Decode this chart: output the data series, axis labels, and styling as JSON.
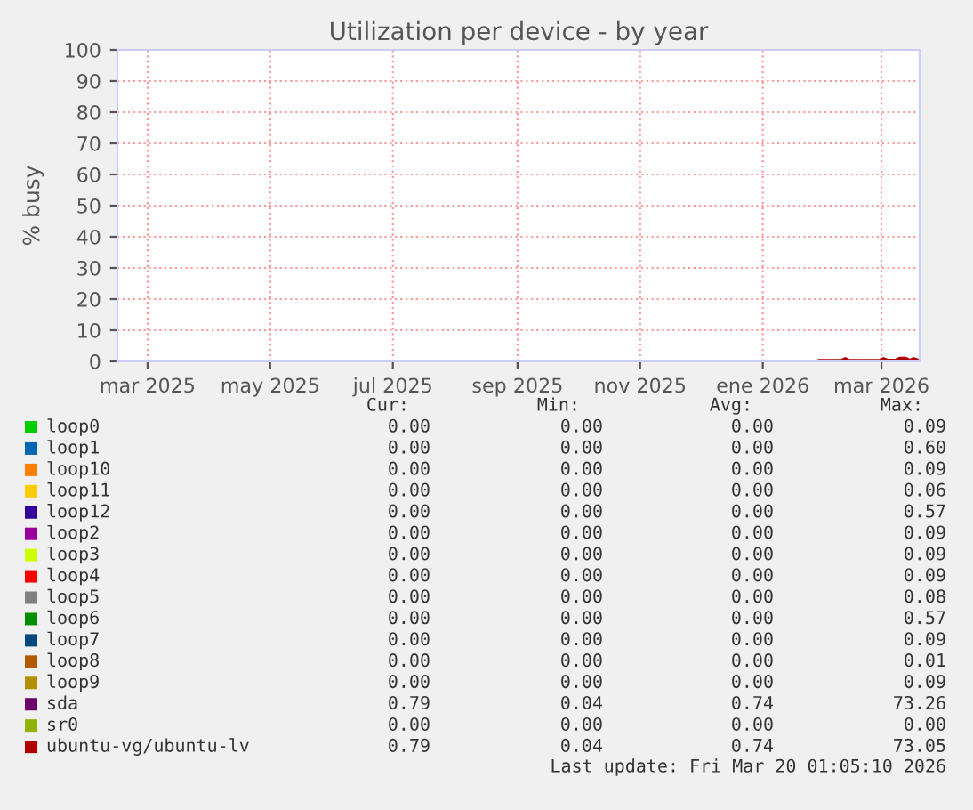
{
  "chart_data": {
    "type": "line",
    "title": "Utilization per device - by year",
    "ylabel": "% busy",
    "x": [
      "2026-01-29",
      "2026-02-09",
      "2026-02-11",
      "2026-02-13",
      "2026-02-28",
      "2026-03-02",
      "2026-03-04",
      "2026-03-08",
      "2026-03-10",
      "2026-03-13",
      "2026-03-15",
      "2026-03-17",
      "2026-03-19"
    ],
    "xlim": [
      "2025-02-14",
      "2026-03-20"
    ],
    "xticks": [
      {
        "value": "2025-03-01",
        "label": "mar 2025"
      },
      {
        "value": "2025-05-01",
        "label": "may 2025"
      },
      {
        "value": "2025-07-01",
        "label": "jul 2025"
      },
      {
        "value": "2025-09-01",
        "label": "sep 2025"
      },
      {
        "value": "2025-11-01",
        "label": "nov 2025"
      },
      {
        "value": "2026-01-01",
        "label": "ene 2026"
      },
      {
        "value": "2026-03-01",
        "label": "mar 2026"
      }
    ],
    "ylim": [
      0,
      100
    ],
    "yticks": [
      0,
      10,
      20,
      30,
      40,
      50,
      60,
      70,
      80,
      90,
      100
    ],
    "grid": true,
    "legend": "bottom",
    "series": [
      {
        "name": "loop0",
        "color": "#00cc00",
        "values": [
          null,
          null,
          null,
          null,
          null,
          null,
          null,
          null,
          null,
          null,
          null,
          null,
          null
        ]
      },
      {
        "name": "loop1",
        "color": "#0066b3",
        "values": [
          null,
          null,
          null,
          null,
          null,
          null,
          null,
          null,
          null,
          null,
          null,
          null,
          null
        ]
      },
      {
        "name": "loop10",
        "color": "#ff8000",
        "values": [
          null,
          null,
          null,
          null,
          null,
          null,
          null,
          null,
          null,
          null,
          null,
          null,
          null
        ]
      },
      {
        "name": "loop11",
        "color": "#ffcc00",
        "values": [
          null,
          null,
          null,
          null,
          null,
          null,
          null,
          null,
          null,
          null,
          null,
          null,
          null
        ]
      },
      {
        "name": "loop12",
        "color": "#330099",
        "values": [
          null,
          null,
          null,
          null,
          null,
          null,
          null,
          null,
          null,
          null,
          null,
          null,
          null
        ]
      },
      {
        "name": "loop2",
        "color": "#990099",
        "values": [
          null,
          null,
          null,
          null,
          null,
          null,
          null,
          null,
          null,
          null,
          null,
          null,
          null
        ]
      },
      {
        "name": "loop3",
        "color": "#ccff00",
        "values": [
          null,
          null,
          null,
          null,
          null,
          null,
          null,
          null,
          null,
          null,
          null,
          null,
          null
        ]
      },
      {
        "name": "loop4",
        "color": "#ff0000",
        "values": [
          null,
          null,
          null,
          null,
          null,
          null,
          null,
          null,
          null,
          null,
          null,
          null,
          null
        ]
      },
      {
        "name": "loop5",
        "color": "#808080",
        "values": [
          null,
          null,
          null,
          null,
          null,
          null,
          null,
          null,
          null,
          null,
          null,
          null,
          null
        ]
      },
      {
        "name": "loop6",
        "color": "#008f00",
        "values": [
          null,
          null,
          null,
          null,
          null,
          null,
          null,
          null,
          null,
          null,
          null,
          null,
          null
        ]
      },
      {
        "name": "loop7",
        "color": "#00487d",
        "values": [
          null,
          null,
          null,
          null,
          null,
          null,
          null,
          null,
          null,
          null,
          null,
          null,
          null
        ]
      },
      {
        "name": "loop8",
        "color": "#b35a00",
        "values": [
          null,
          null,
          null,
          null,
          null,
          null,
          null,
          null,
          null,
          null,
          null,
          null,
          null
        ]
      },
      {
        "name": "loop9",
        "color": "#b38f00",
        "values": [
          null,
          null,
          null,
          null,
          null,
          null,
          null,
          null,
          null,
          null,
          null,
          null,
          null
        ]
      },
      {
        "name": "sda",
        "color": "#6b006b",
        "values": [
          null,
          null,
          null,
          null,
          null,
          null,
          null,
          null,
          null,
          null,
          null,
          null,
          null
        ]
      },
      {
        "name": "sr0",
        "color": "#8fb300",
        "values": [
          null,
          null,
          null,
          null,
          null,
          null,
          null,
          null,
          null,
          null,
          null,
          null,
          null
        ]
      },
      {
        "name": "ubuntu-vg/ubuntu-lv",
        "color": "#b30000",
        "values": [
          0.3,
          0.3,
          0.9,
          0.3,
          0.3,
          0.9,
          0.4,
          0.4,
          1,
          1,
          0.4,
          0.9,
          0.5
        ]
      }
    ],
    "annotations": [
      "Cur:",
      "Min:",
      "Avg:",
      "Max:",
      "0.00",
      "0.00",
      "0.00",
      "0.09",
      "0.00",
      "0.00",
      "0.00",
      "0.60",
      "0.00",
      "0.00",
      "0.00",
      "0.09",
      "0.00",
      "0.00",
      "0.00",
      "0.06",
      "0.00",
      "0.00",
      "0.00",
      "0.57",
      "0.00",
      "0.00",
      "0.00",
      "0.09",
      "0.00",
      "0.00",
      "0.00",
      "0.09",
      "0.00",
      "0.00",
      "0.00",
      "0.09",
      "0.00",
      "0.00",
      "0.00",
      "0.08",
      "0.00",
      "0.00",
      "0.00",
      "0.57",
      "0.00",
      "0.00",
      "0.00",
      "0.09",
      "0.00",
      "0.00",
      "0.00",
      "0.01",
      "0.00",
      "0.00",
      "0.00",
      "0.09",
      "0.79",
      "0.04",
      "0.74",
      "73.26",
      "0.00",
      "0.00",
      "0.00",
      "0.00",
      "0.79",
      "0.04",
      "0.74",
      "73.05",
      "Last update: Fri Mar 20 01:05:10 2026"
    ]
  }
}
